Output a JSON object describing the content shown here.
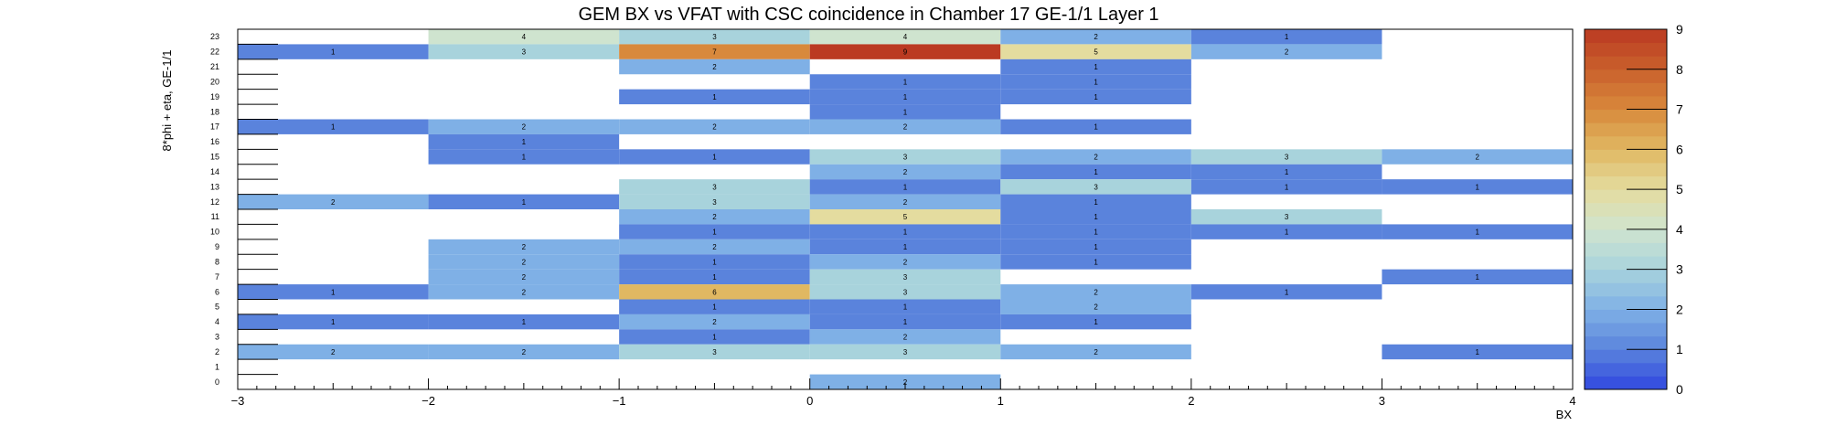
{
  "chart_data": {
    "type": "heatmap",
    "title": "GEM BX vs VFAT with CSC coincidence in Chamber 17 GE-1/1 Layer 1",
    "xlabel": "BX",
    "ylabel": "8*phi + eta, GE-1/1",
    "xlim": [
      -3,
      4
    ],
    "ylim": [
      0,
      24
    ],
    "x_ticks": [
      "−3",
      "−2",
      "−1",
      "0",
      "1",
      "2",
      "3",
      "4"
    ],
    "y_ticks": [
      "0",
      "1",
      "2",
      "3",
      "4",
      "5",
      "6",
      "7",
      "8",
      "9",
      "10",
      "11",
      "12",
      "13",
      "14",
      "15",
      "16",
      "17",
      "18",
      "19",
      "20",
      "21",
      "22",
      "23"
    ],
    "x_bins": [
      -2.5,
      -1.5,
      -0.5,
      0.5,
      1.5,
      2.5,
      3.5
    ],
    "colorbar": {
      "min": 0,
      "max": 9,
      "ticks": [
        "0",
        "1",
        "2",
        "3",
        "4",
        "5",
        "6",
        "7",
        "8",
        "9"
      ]
    },
    "cells": [
      {
        "x": -1.5,
        "y": 23,
        "v": 4
      },
      {
        "x": -0.5,
        "y": 23,
        "v": 3
      },
      {
        "x": 0.5,
        "y": 23,
        "v": 4
      },
      {
        "x": 1.5,
        "y": 23,
        "v": 2
      },
      {
        "x": 2.5,
        "y": 23,
        "v": 1
      },
      {
        "x": -2.5,
        "y": 22,
        "v": 1
      },
      {
        "x": -1.5,
        "y": 22,
        "v": 3
      },
      {
        "x": -0.5,
        "y": 22,
        "v": 7
      },
      {
        "x": 0.5,
        "y": 22,
        "v": 9
      },
      {
        "x": 1.5,
        "y": 22,
        "v": 5
      },
      {
        "x": 2.5,
        "y": 22,
        "v": 2
      },
      {
        "x": -0.5,
        "y": 21,
        "v": 2
      },
      {
        "x": 1.5,
        "y": 21,
        "v": 1
      },
      {
        "x": 0.5,
        "y": 20,
        "v": 1
      },
      {
        "x": 1.5,
        "y": 20,
        "v": 1
      },
      {
        "x": -0.5,
        "y": 19,
        "v": 1
      },
      {
        "x": 0.5,
        "y": 19,
        "v": 1
      },
      {
        "x": 1.5,
        "y": 19,
        "v": 1
      },
      {
        "x": 0.5,
        "y": 18,
        "v": 1
      },
      {
        "x": -2.5,
        "y": 17,
        "v": 1
      },
      {
        "x": -1.5,
        "y": 17,
        "v": 2
      },
      {
        "x": -0.5,
        "y": 17,
        "v": 2
      },
      {
        "x": 0.5,
        "y": 17,
        "v": 2
      },
      {
        "x": 1.5,
        "y": 17,
        "v": 1
      },
      {
        "x": -1.5,
        "y": 16,
        "v": 1
      },
      {
        "x": -1.5,
        "y": 15,
        "v": 1
      },
      {
        "x": -0.5,
        "y": 15,
        "v": 1
      },
      {
        "x": 0.5,
        "y": 15,
        "v": 3
      },
      {
        "x": 1.5,
        "y": 15,
        "v": 2
      },
      {
        "x": 2.5,
        "y": 15,
        "v": 3
      },
      {
        "x": 3.5,
        "y": 15,
        "v": 2
      },
      {
        "x": 0.5,
        "y": 14,
        "v": 2
      },
      {
        "x": 1.5,
        "y": 14,
        "v": 1
      },
      {
        "x": 2.5,
        "y": 14,
        "v": 1
      },
      {
        "x": -0.5,
        "y": 13,
        "v": 3
      },
      {
        "x": 0.5,
        "y": 13,
        "v": 1
      },
      {
        "x": 1.5,
        "y": 13,
        "v": 3
      },
      {
        "x": 2.5,
        "y": 13,
        "v": 1
      },
      {
        "x": 3.5,
        "y": 13,
        "v": 1
      },
      {
        "x": -2.5,
        "y": 12,
        "v": 2
      },
      {
        "x": -1.5,
        "y": 12,
        "v": 1
      },
      {
        "x": -0.5,
        "y": 12,
        "v": 3
      },
      {
        "x": 0.5,
        "y": 12,
        "v": 2
      },
      {
        "x": 1.5,
        "y": 12,
        "v": 1
      },
      {
        "x": -0.5,
        "y": 11,
        "v": 2
      },
      {
        "x": 0.5,
        "y": 11,
        "v": 5
      },
      {
        "x": 1.5,
        "y": 11,
        "v": 1
      },
      {
        "x": 2.5,
        "y": 11,
        "v": 3
      },
      {
        "x": -0.5,
        "y": 10,
        "v": 1
      },
      {
        "x": 0.5,
        "y": 10,
        "v": 1
      },
      {
        "x": 1.5,
        "y": 10,
        "v": 1
      },
      {
        "x": 2.5,
        "y": 10,
        "v": 1
      },
      {
        "x": 3.5,
        "y": 10,
        "v": 1
      },
      {
        "x": -1.5,
        "y": 9,
        "v": 2
      },
      {
        "x": -0.5,
        "y": 9,
        "v": 2
      },
      {
        "x": 0.5,
        "y": 9,
        "v": 1
      },
      {
        "x": 1.5,
        "y": 9,
        "v": 1
      },
      {
        "x": -1.5,
        "y": 8,
        "v": 2
      },
      {
        "x": -0.5,
        "y": 8,
        "v": 1
      },
      {
        "x": 0.5,
        "y": 8,
        "v": 2
      },
      {
        "x": 1.5,
        "y": 8,
        "v": 1
      },
      {
        "x": -1.5,
        "y": 7,
        "v": 2
      },
      {
        "x": -0.5,
        "y": 7,
        "v": 1
      },
      {
        "x": 0.5,
        "y": 7,
        "v": 3
      },
      {
        "x": 3.5,
        "y": 7,
        "v": 1
      },
      {
        "x": -2.5,
        "y": 6,
        "v": 1
      },
      {
        "x": -1.5,
        "y": 6,
        "v": 2
      },
      {
        "x": -0.5,
        "y": 6,
        "v": 6
      },
      {
        "x": 0.5,
        "y": 6,
        "v": 3
      },
      {
        "x": 1.5,
        "y": 6,
        "v": 2
      },
      {
        "x": 2.5,
        "y": 6,
        "v": 1
      },
      {
        "x": -0.5,
        "y": 5,
        "v": 1
      },
      {
        "x": 0.5,
        "y": 5,
        "v": 1
      },
      {
        "x": 1.5,
        "y": 5,
        "v": 2
      },
      {
        "x": -2.5,
        "y": 4,
        "v": 1
      },
      {
        "x": -1.5,
        "y": 4,
        "v": 1
      },
      {
        "x": -0.5,
        "y": 4,
        "v": 2
      },
      {
        "x": 0.5,
        "y": 4,
        "v": 1
      },
      {
        "x": 1.5,
        "y": 4,
        "v": 1
      },
      {
        "x": -0.5,
        "y": 3,
        "v": 1
      },
      {
        "x": 0.5,
        "y": 3,
        "v": 2
      },
      {
        "x": -2.5,
        "y": 2,
        "v": 2
      },
      {
        "x": -1.5,
        "y": 2,
        "v": 2
      },
      {
        "x": -0.5,
        "y": 2,
        "v": 3
      },
      {
        "x": 0.5,
        "y": 2,
        "v": 3
      },
      {
        "x": 1.5,
        "y": 2,
        "v": 2
      },
      {
        "x": 3.5,
        "y": 2,
        "v": 1
      },
      {
        "x": 0.5,
        "y": 0,
        "v": 2
      }
    ]
  },
  "colors": {
    "palette": [
      "#3047e0",
      "#5a83dc",
      "#7fb0e6",
      "#a8d3dc",
      "#cfe4cf",
      "#e4dc9f",
      "#e0b862",
      "#d8893c",
      "#c9602c",
      "#bb3a22"
    ]
  }
}
